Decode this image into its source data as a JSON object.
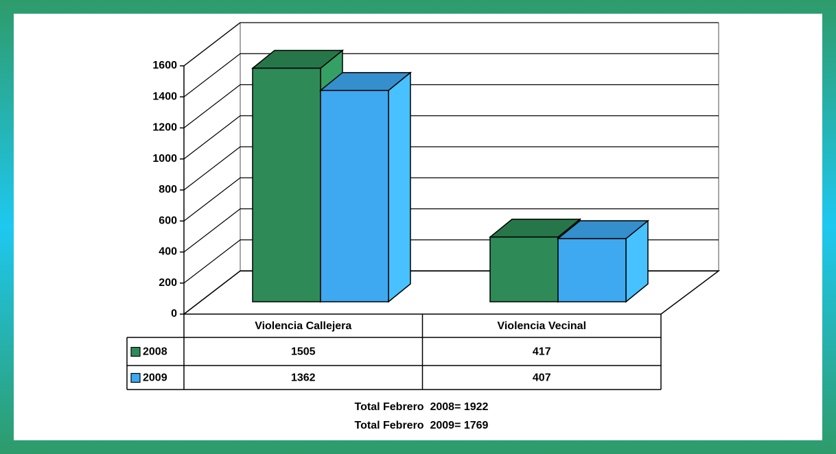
{
  "chart_data": {
    "type": "bar3d",
    "categories": [
      "Violencia Callejera",
      "Violencia Vecinal"
    ],
    "series": [
      {
        "name": "2008",
        "color": "#2e8b57",
        "values": [
          1505,
          417
        ]
      },
      {
        "name": "2009",
        "color": "#3ea8f0",
        "values": [
          1362,
          407
        ]
      }
    ],
    "ylim": [
      0,
      1600
    ],
    "yticks": [
      0,
      200,
      400,
      600,
      800,
      1000,
      1200,
      1400,
      1600
    ],
    "grid": true,
    "notes": [
      "Total Febrero  2008= 1922",
      "Total Febrero  2009= 1769"
    ]
  }
}
